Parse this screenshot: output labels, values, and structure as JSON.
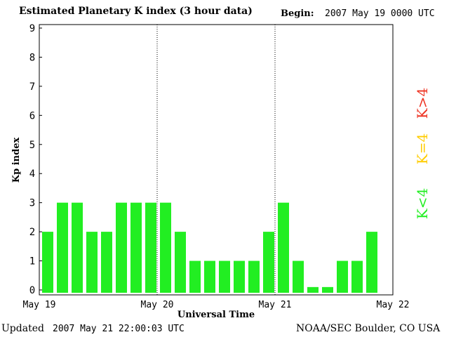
{
  "header": {
    "title": "Estimated Planetary K index (3 hour data)",
    "begin_label": "Begin:",
    "begin_value": "2007 May 19 0000 UTC"
  },
  "footer": {
    "updated_label": "Updated",
    "updated_value": "2007 May 21 22:00:03 UTC",
    "credit": "NOAA/SEC Boulder, CO USA"
  },
  "legend": {
    "items": [
      {
        "label": "K<4",
        "color": "#22ee22"
      },
      {
        "label": "K=4",
        "color": "#ffcc00"
      },
      {
        "label": "K>4",
        "color": "#ee3322"
      }
    ]
  },
  "chart_data": {
    "type": "bar",
    "xlabel": "Universal Time",
    "ylabel": "Kp index",
    "ylim": [
      0,
      9
    ],
    "yticks": [
      0,
      1,
      2,
      3,
      4,
      5,
      6,
      7,
      8,
      9
    ],
    "x_day_labels": [
      "May 19",
      "May 20",
      "May 21",
      "May 22"
    ],
    "bar_interval_hours": 3,
    "values": [
      2,
      3,
      3,
      2,
      2,
      3,
      3,
      3,
      3,
      2,
      1,
      1,
      1,
      1,
      1,
      2,
      3,
      1,
      0.1,
      0.1,
      1,
      1,
      2
    ],
    "bar_color": "#22ee22",
    "grid": false
  }
}
